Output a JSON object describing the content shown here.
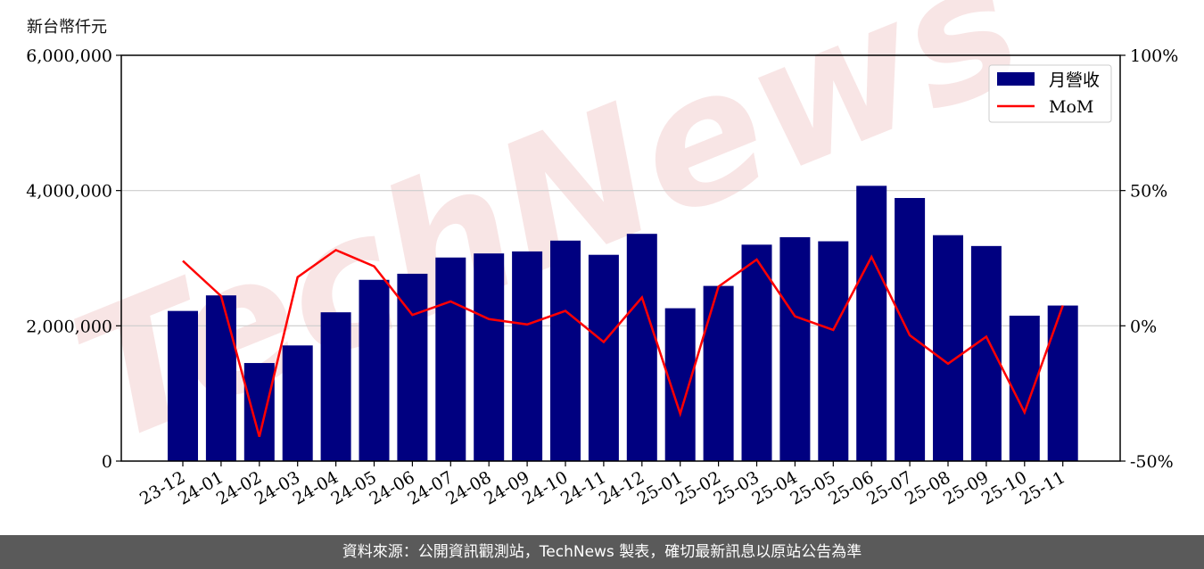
{
  "unit_label": "新台幣仟元",
  "footer_text": "資料來源：公開資訊觀測站，TechNews 製表，確切最新訊息以原站公告為準",
  "watermark_text": "TechNews",
  "colors": {
    "bar": "#000080",
    "line": "#ff0000",
    "grid": "#cccccc",
    "axis": "#000000",
    "watermark": "#e8a3a3"
  },
  "chart_data": {
    "type": "bar",
    "categories": [
      "23-12",
      "24-01",
      "24-02",
      "24-03",
      "24-04",
      "24-05",
      "24-06",
      "24-07",
      "24-08",
      "24-09",
      "24-10",
      "24-11",
      "24-12",
      "25-01",
      "25-02",
      "25-03",
      "25-04",
      "25-05",
      "25-06",
      "25-07",
      "25-08",
      "25-09",
      "25-10",
      "25-11"
    ],
    "series": [
      {
        "name": "月營收",
        "axis": "left",
        "type": "bar",
        "values": [
          2220000,
          2450000,
          1450000,
          1710000,
          2200000,
          2680000,
          2770000,
          3010000,
          3070000,
          3100000,
          3260000,
          3050000,
          3360000,
          2260000,
          2590000,
          3200000,
          3310000,
          3250000,
          4070000,
          3890000,
          3340000,
          3180000,
          2150000,
          2300000
        ]
      },
      {
        "name": "MoM",
        "axis": "right",
        "type": "line",
        "values": [
          24,
          11,
          -41,
          18,
          28,
          22,
          4,
          9,
          2.5,
          0.5,
          5.5,
          -6,
          10.5,
          -32.5,
          14.5,
          24.5,
          3.5,
          -1.5,
          25.5,
          -3.5,
          -14,
          -4,
          -32,
          7.5
        ]
      }
    ],
    "yleft": {
      "ticks": [
        "0",
        "2,000,000",
        "4,000,000",
        "6,000,000"
      ],
      "tick_values": [
        0,
        2000000,
        4000000,
        6000000
      ],
      "lim": [
        0,
        6000000
      ]
    },
    "yright": {
      "ticks": [
        "-50%",
        "0%",
        "50%",
        "100%"
      ],
      "tick_values": [
        -50,
        0,
        50,
        100
      ],
      "lim": [
        -50,
        100
      ]
    },
    "grid": "horizontal",
    "legend": {
      "position": "top-right",
      "entries": [
        "月營收",
        "MoM"
      ]
    }
  }
}
